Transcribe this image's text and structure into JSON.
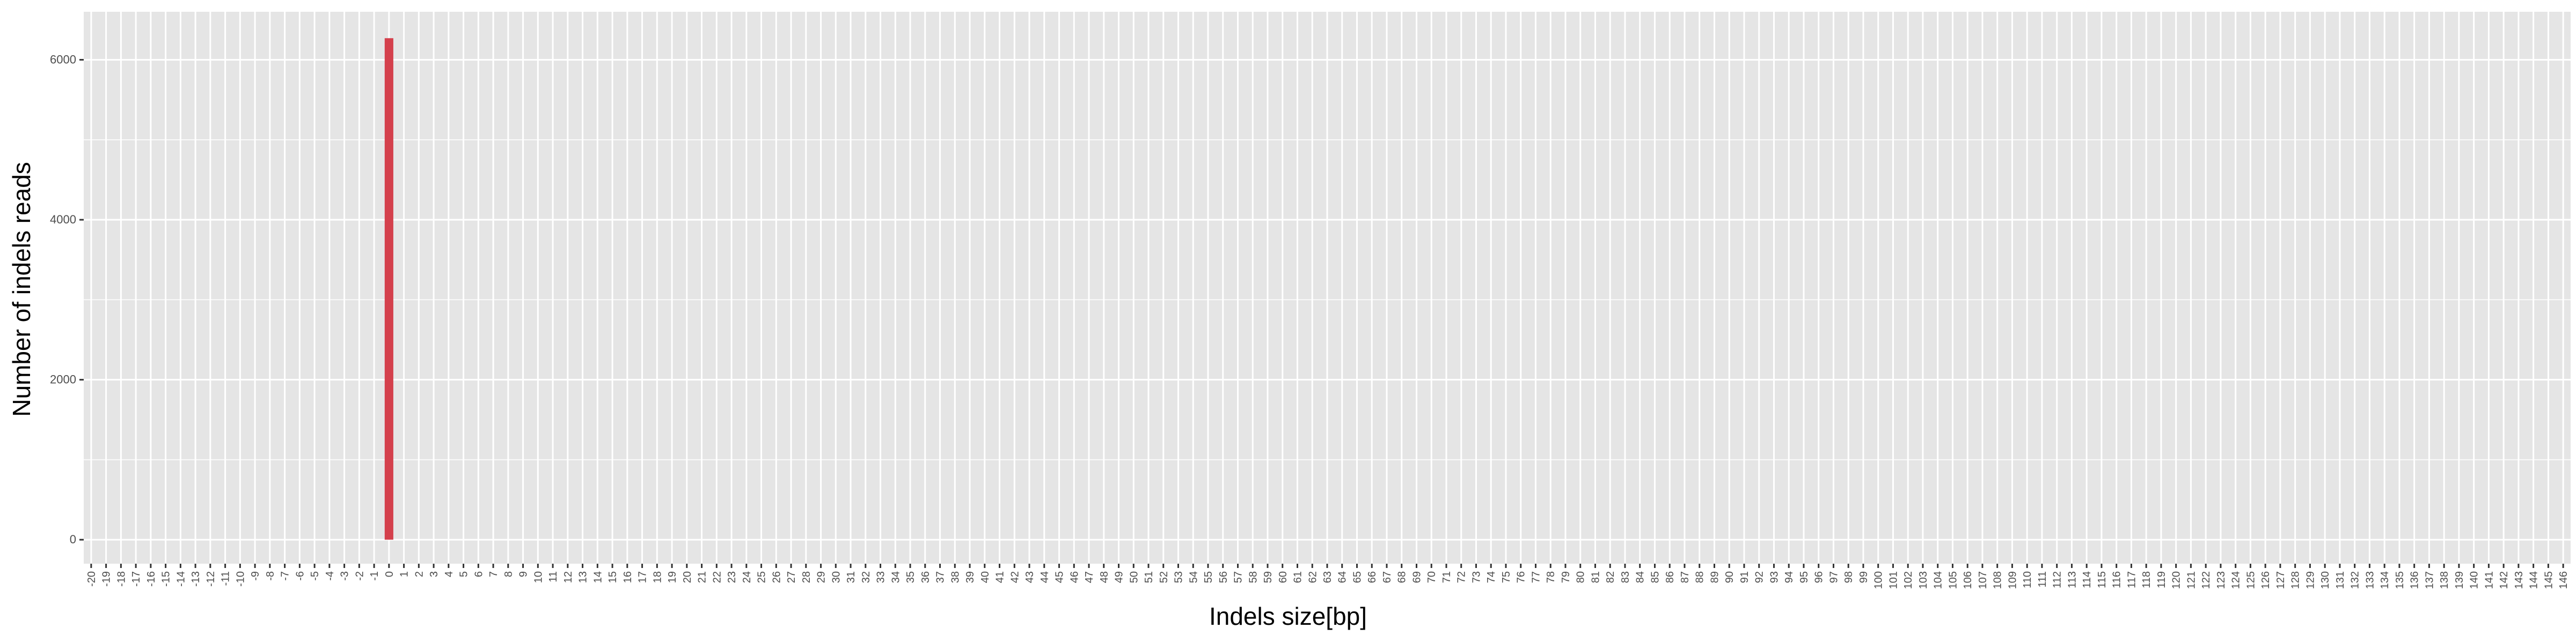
{
  "chart_data": {
    "type": "bar",
    "xlabel": "Indels size[bp]",
    "ylabel": "Number of indels reads",
    "categories": [
      "-20",
      "-19",
      "-18",
      "-17",
      "-16",
      "-15",
      "-14",
      "-13",
      "-12",
      "-11",
      "-10",
      "-9",
      "-8",
      "-7",
      "-6",
      "-5",
      "-4",
      "-3",
      "-2",
      "-1",
      "0",
      "1",
      "2",
      "3",
      "4",
      "5",
      "6",
      "7",
      "8",
      "9",
      "10",
      "11",
      "12",
      "13",
      "14",
      "15",
      "16",
      "17",
      "18",
      "19",
      "20",
      "21",
      "22",
      "23",
      "24",
      "25",
      "26",
      "27",
      "28",
      "29",
      "30",
      "31",
      "32",
      "33",
      "34",
      "35",
      "36",
      "37",
      "38",
      "39",
      "40",
      "41",
      "42",
      "43",
      "44",
      "45",
      "46",
      "47",
      "48",
      "49",
      "50",
      "51",
      "52",
      "53",
      "54",
      "55",
      "56",
      "57",
      "58",
      "59",
      "60",
      "61",
      "62",
      "63",
      "64",
      "65",
      "66",
      "67",
      "68",
      "69",
      "70",
      "71",
      "72",
      "73",
      "74",
      "75",
      "76",
      "77",
      "78",
      "79",
      "80",
      "81",
      "82",
      "83",
      "84",
      "85",
      "86",
      "87",
      "88",
      "89",
      "90",
      "91",
      "92",
      "93",
      "94",
      "95",
      "96",
      "97",
      "98",
      "99",
      "100",
      "101",
      "102",
      "103",
      "104",
      "105",
      "106",
      "107",
      "108",
      "109",
      "110",
      "111",
      "112",
      "113",
      "114",
      "115",
      "116",
      "117",
      "118",
      "119",
      "120",
      "121",
      "122",
      "123",
      "124",
      "125",
      "126",
      "127",
      "128",
      "129",
      "130",
      "131",
      "132",
      "133",
      "134",
      "135",
      "136",
      "137",
      "138",
      "139",
      "140",
      "141",
      "142",
      "143",
      "144",
      "145",
      "146"
    ],
    "values": [
      0,
      0,
      0,
      0,
      0,
      0,
      0,
      0,
      0,
      0,
      0,
      0,
      0,
      0,
      0,
      0,
      0,
      0,
      0,
      0,
      6270,
      0,
      0,
      0,
      0,
      0,
      0,
      0,
      0,
      0,
      0,
      0,
      0,
      0,
      0,
      0,
      0,
      0,
      0,
      0,
      0,
      0,
      0,
      0,
      0,
      0,
      0,
      0,
      0,
      0,
      0,
      0,
      0,
      0,
      0,
      0,
      0,
      0,
      0,
      0,
      0,
      0,
      0,
      0,
      0,
      0,
      0,
      0,
      0,
      0,
      0,
      0,
      0,
      0,
      0,
      0,
      0,
      0,
      0,
      0,
      0,
      0,
      0,
      0,
      0,
      0,
      0,
      0,
      0,
      0,
      0,
      0,
      0,
      0,
      0,
      0,
      0,
      0,
      0,
      0,
      0,
      0,
      0,
      0,
      0,
      0,
      0,
      0,
      0,
      0,
      0,
      0,
      0,
      0,
      0,
      0,
      0,
      0,
      0,
      0,
      0,
      0,
      0,
      0,
      0,
      0,
      0,
      0,
      0,
      0,
      0,
      0,
      0,
      0,
      0,
      0,
      0,
      0,
      0,
      0,
      0,
      0,
      0,
      0,
      0,
      0,
      0,
      0,
      0,
      0,
      0,
      0,
      0,
      0,
      0,
      0,
      0,
      0,
      0,
      0,
      0,
      0,
      0,
      0,
      0,
      0,
      0
    ],
    "y_ticks": [
      0,
      2000,
      4000,
      6000
    ],
    "ylim": [
      -300,
      6600
    ],
    "grid": true,
    "legend": "none",
    "colors": {
      "panel_background": "#e5e5e5",
      "grid_line": "#ffffff",
      "bar_fill": "#d4404c",
      "tick_text": "#4d4d4d",
      "tick_mark": "#333333",
      "axis_title": "#000000"
    }
  }
}
